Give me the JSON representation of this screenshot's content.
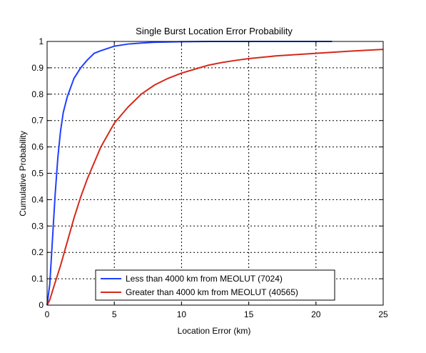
{
  "chart_data": {
    "type": "line",
    "title": "Single Burst Location Error Probability",
    "xlabel": "Location Error (km)",
    "ylabel": "Cumulative Probability",
    "xlim": [
      0,
      25
    ],
    "ylim": [
      0,
      1
    ],
    "xticks": [
      0,
      5,
      10,
      15,
      20,
      25
    ],
    "yticks": [
      0,
      0.1,
      0.2,
      0.3,
      0.4,
      0.5,
      0.6,
      0.7,
      0.8,
      0.9,
      1
    ],
    "grid": true,
    "legend_position": "bottom-center",
    "series": [
      {
        "name": "Less than 4000 km from MEOLUT (7024)",
        "color": "#1f3fff",
        "x": [
          0,
          0.2,
          0.4,
          0.6,
          0.8,
          1.0,
          1.2,
          1.5,
          2.0,
          2.5,
          3.0,
          3.5,
          4.0,
          5.0,
          6.0,
          7.0,
          8.0,
          9.0,
          10.0,
          12.0,
          15.0,
          21.2
        ],
        "y": [
          0,
          0.08,
          0.25,
          0.42,
          0.56,
          0.66,
          0.73,
          0.79,
          0.86,
          0.9,
          0.93,
          0.955,
          0.965,
          0.982,
          0.99,
          0.994,
          0.997,
          0.998,
          0.999,
          1.0,
          1.0,
          1.0
        ]
      },
      {
        "name": "Greater than 4000 km from MEOLUT (40565)",
        "color": "#d42a1a",
        "x": [
          0,
          0.2,
          0.5,
          1.0,
          1.5,
          2.0,
          2.5,
          3.0,
          3.5,
          4.0,
          5.0,
          6.0,
          7.0,
          8.0,
          9.0,
          10.0,
          11.0,
          12.0,
          13.0,
          14.0,
          15.0,
          17.0,
          20.0,
          22.5,
          25.0
        ],
        "y": [
          0,
          0.02,
          0.07,
          0.15,
          0.24,
          0.33,
          0.41,
          0.48,
          0.54,
          0.6,
          0.69,
          0.75,
          0.8,
          0.835,
          0.86,
          0.88,
          0.895,
          0.91,
          0.92,
          0.928,
          0.935,
          0.945,
          0.955,
          0.963,
          0.97
        ]
      }
    ]
  }
}
